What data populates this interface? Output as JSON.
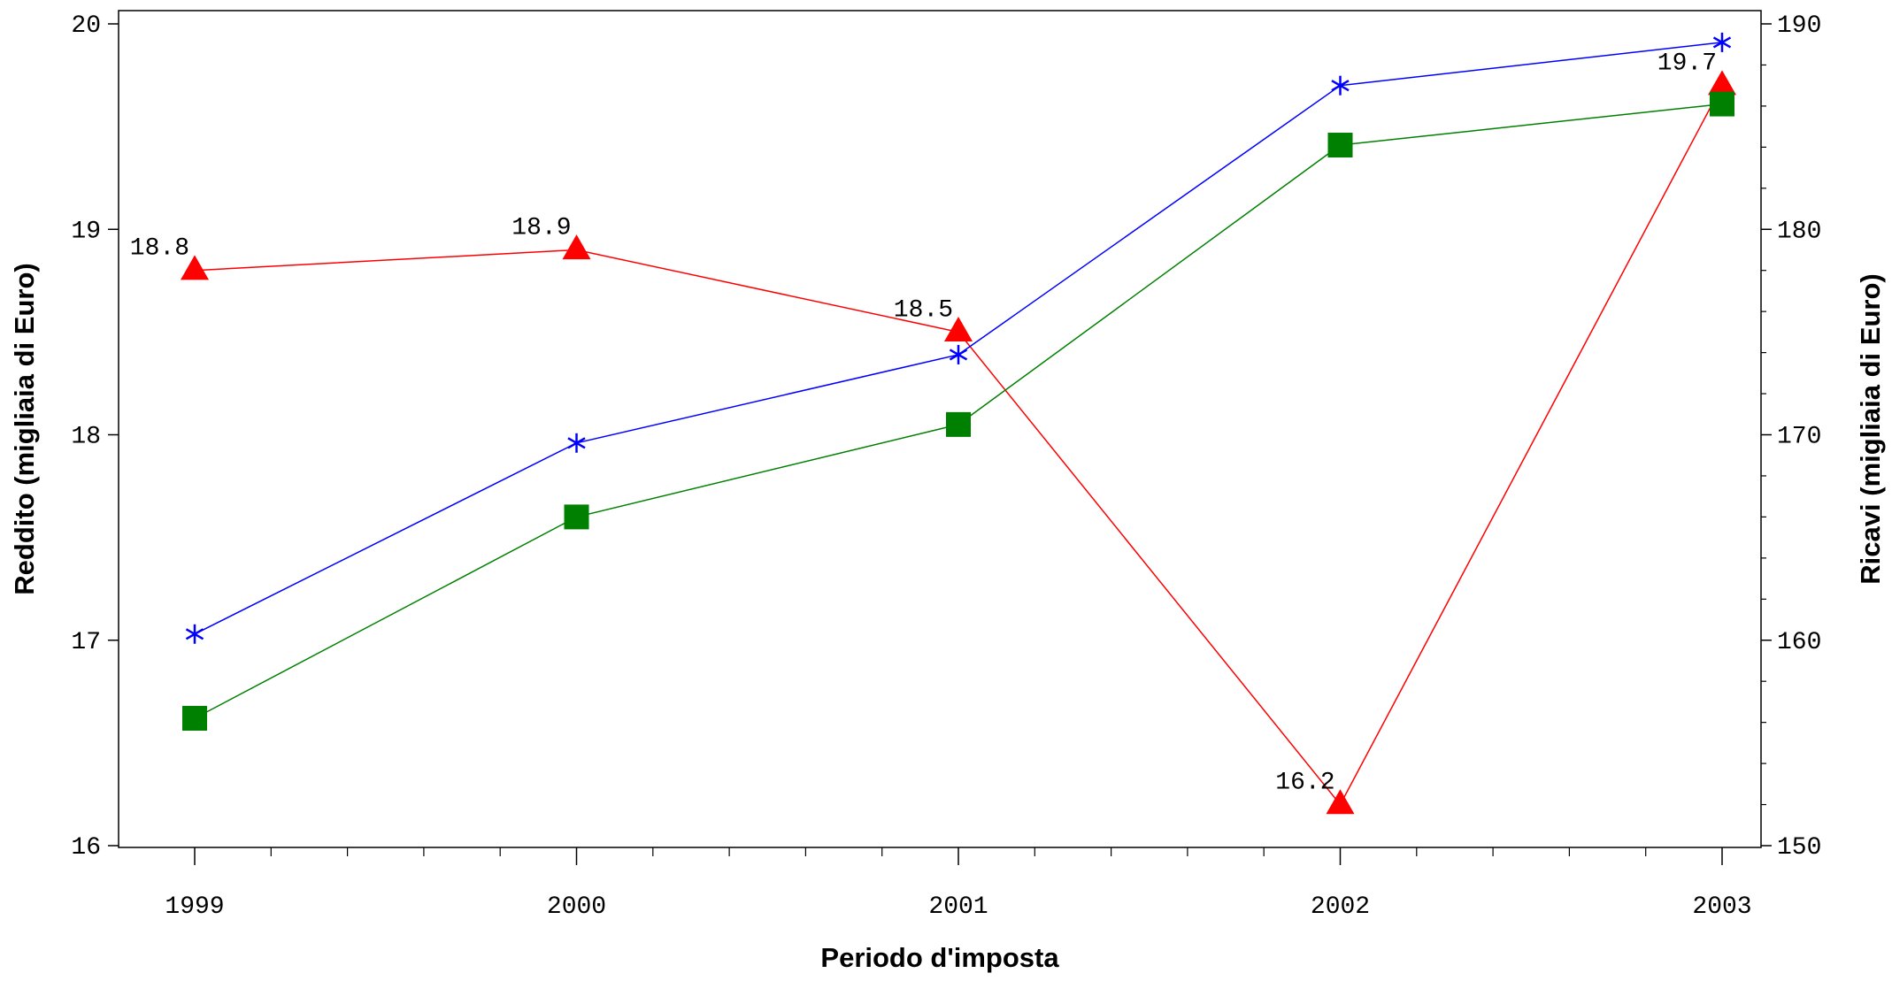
{
  "chart_data": {
    "type": "line",
    "x": [
      "1999",
      "2000",
      "2001",
      "2002",
      "2003"
    ],
    "xlabel": "Periodo d'imposta",
    "y_left": {
      "label": "Reddito (migliaia di Euro)",
      "ylim": [
        16,
        20
      ],
      "ticks": [
        "16",
        "17",
        "18",
        "19",
        "20"
      ]
    },
    "y_right": {
      "label": "Ricavi (migliaia di Euro)",
      "ylim": [
        150,
        190
      ],
      "ticks": [
        "150",
        "160",
        "170",
        "180",
        "190"
      ]
    },
    "series": [
      {
        "axis": "left",
        "marker": "triangle",
        "color": "#ff0000",
        "values": [
          18.8,
          18.9,
          18.5,
          16.2,
          19.7
        ],
        "labels": [
          "18.8",
          "18.9",
          "18.5",
          "16.2",
          "19.7"
        ]
      },
      {
        "axis": "right",
        "marker": "asterisk",
        "color": "#0000ff",
        "values": [
          160.3,
          169.6,
          173.9,
          187.0,
          189.1
        ]
      },
      {
        "axis": "right",
        "marker": "square",
        "color": "#008000",
        "values": [
          156.2,
          166.0,
          170.5,
          184.1,
          186.1
        ]
      }
    ],
    "grid": false
  }
}
